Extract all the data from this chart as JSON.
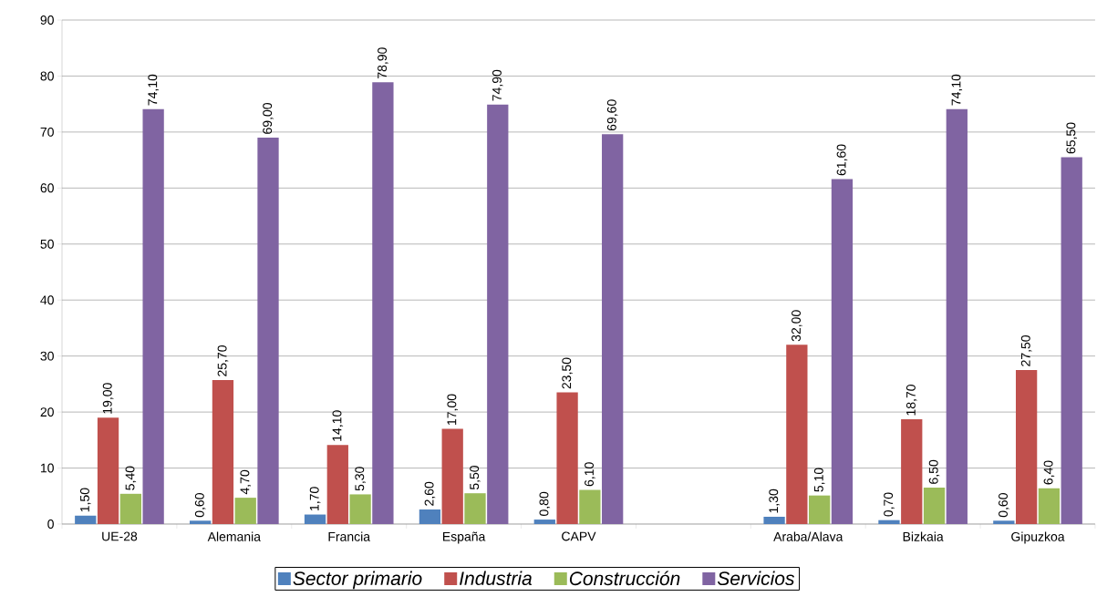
{
  "chart_data": {
    "type": "bar",
    "categories": [
      "UE-28",
      "Alemania",
      "Francia",
      "España",
      "CAPV",
      null,
      "Araba/Alava",
      "Bizkaia",
      "Gipuzkoa"
    ],
    "series": [
      {
        "name": "Sector primario",
        "color": "#4f81bd",
        "values": [
          1.5,
          0.6,
          1.7,
          2.6,
          0.8,
          null,
          1.3,
          0.7,
          0.6
        ],
        "value_labels": [
          "1,50",
          "0,60",
          "1,70",
          "2,60",
          "0,80",
          null,
          "1,30",
          "0,70",
          "0,60"
        ]
      },
      {
        "name": "Industria",
        "color": "#c0504d",
        "values": [
          19.0,
          25.7,
          14.1,
          17.0,
          23.5,
          null,
          32.0,
          18.7,
          27.5
        ],
        "value_labels": [
          "19,00",
          "25,70",
          "14,10",
          "17,00",
          "23,50",
          null,
          "32,00",
          "18,70",
          "27,50"
        ]
      },
      {
        "name": "Construcción",
        "color": "#9bbb59",
        "values": [
          5.4,
          4.7,
          5.3,
          5.5,
          6.1,
          null,
          5.1,
          6.5,
          6.4
        ],
        "value_labels": [
          "5,40",
          "4,70",
          "5,30",
          "5,50",
          "6,10",
          null,
          "5,10",
          "6,50",
          "6,40"
        ]
      },
      {
        "name": "Servicios",
        "color": "#8064a2",
        "values": [
          74.1,
          69.0,
          78.9,
          74.9,
          69.6,
          null,
          61.6,
          74.1,
          65.5
        ],
        "value_labels": [
          "74,10",
          "69,00",
          "78,90",
          "74,90",
          "69,60",
          null,
          "61,60",
          "74,10",
          "65,50"
        ]
      }
    ],
    "ylim": [
      0,
      90
    ],
    "yticks": [
      0,
      10,
      20,
      30,
      40,
      50,
      60,
      70,
      80,
      90
    ],
    "grid": "y",
    "legend": "bottom"
  }
}
